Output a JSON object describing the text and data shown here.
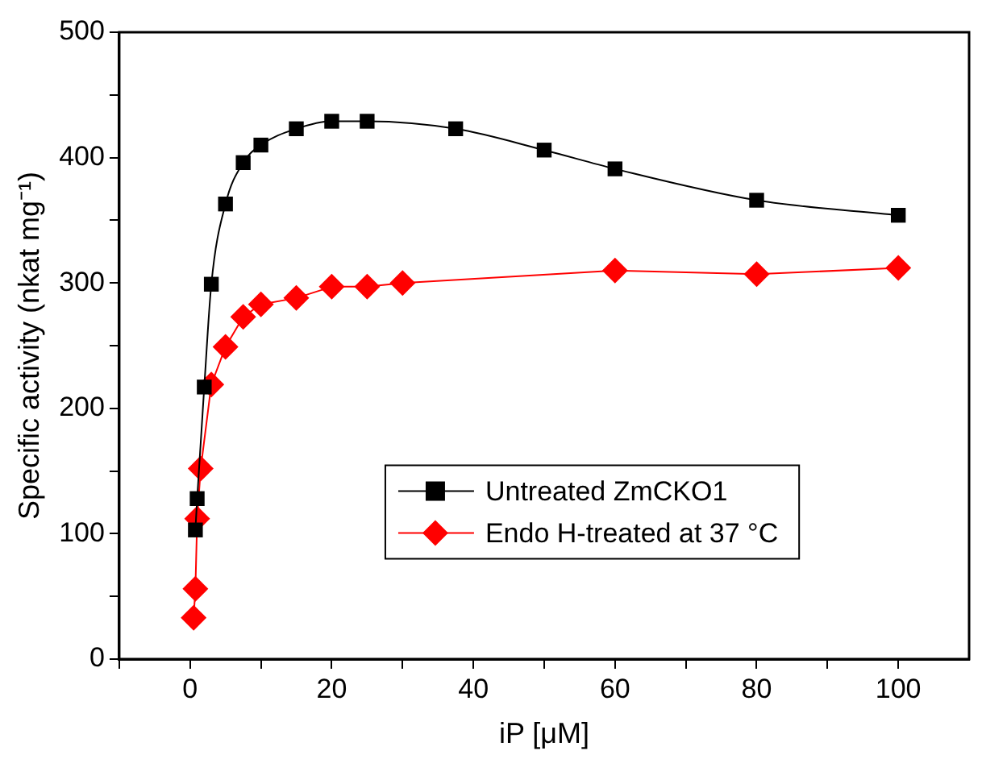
{
  "chart_data": {
    "type": "line",
    "xlabel": "iP [μM]",
    "ylabel": "Specific activity (nkat mg⁻¹)",
    "xlim": [
      -10,
      110
    ],
    "xticks": [
      {
        "value": -10,
        "label": null
      },
      0,
      {
        "value": 10,
        "label": null
      },
      20,
      {
        "value": 30,
        "label": null
      },
      40,
      {
        "value": 50,
        "label": null
      },
      60,
      {
        "value": 70,
        "label": null
      },
      80,
      {
        "value": 90,
        "label": null
      },
      100
    ],
    "ylim": [
      0,
      500
    ],
    "yticks": [
      0,
      {
        "value": 50,
        "label": null
      },
      100,
      {
        "value": 150,
        "label": null
      },
      200,
      {
        "value": 250,
        "label": null
      },
      300,
      {
        "value": 350,
        "label": null
      },
      400,
      {
        "value": 450,
        "label": null
      },
      500
    ],
    "grid": false,
    "legend": "bottom right",
    "line_style": "solid",
    "series": [
      {
        "name": "Untreated ZmCKO1",
        "color": "#000000",
        "marker": "square",
        "x": [
          0.75,
          1,
          2,
          3,
          5,
          7.5,
          10,
          15,
          20,
          25,
          37.5,
          50,
          60,
          80,
          100
        ],
        "values": [
          103,
          128,
          217,
          299,
          363,
          396,
          410,
          423,
          429,
          429,
          423,
          406,
          391,
          366,
          354
        ]
      },
      {
        "name": "Endo H-treated at 37 °C",
        "color": "#ff0000",
        "marker": "diamond",
        "x": [
          0.5,
          0.75,
          1,
          1.5,
          3,
          5,
          7.5,
          10,
          15,
          20,
          25,
          30,
          60,
          80,
          100
        ],
        "values": [
          33,
          56,
          112,
          152,
          219,
          249,
          273,
          283,
          288,
          297,
          297,
          300,
          310,
          307,
          312
        ]
      }
    ]
  }
}
